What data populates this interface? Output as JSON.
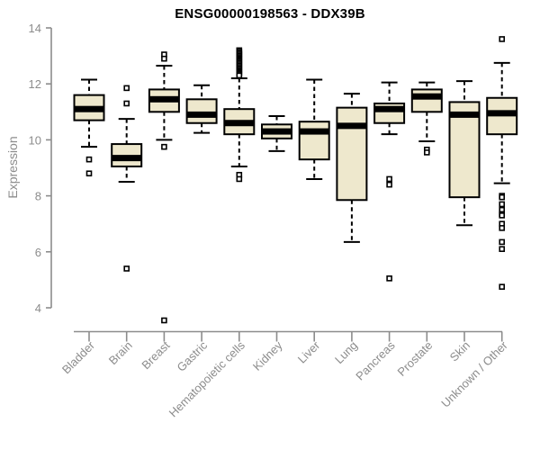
{
  "chart_data": {
    "type": "boxplot",
    "title": "ENSG00000198563 - DDX39B",
    "ylabel": "Expression",
    "xlabel": "",
    "ylim": [
      3.4,
      14
    ],
    "yticks": [
      4,
      6,
      8,
      10,
      12,
      14
    ],
    "grid": false,
    "legend": "none",
    "categories": [
      "Bladder",
      "Brain",
      "Breast",
      "Gastric",
      "Hematopoietic cells",
      "Kidney",
      "Liver",
      "Lung",
      "Pancreas",
      "Prostate",
      "Skin",
      "Unknown / Other"
    ],
    "series": [
      {
        "name": "Bladder",
        "whisker_low": 9.75,
        "q1": 10.7,
        "median": 11.1,
        "q3": 11.6,
        "whisker_high": 12.15,
        "outliers": [
          9.3,
          8.8
        ]
      },
      {
        "name": "Brain",
        "whisker_low": 8.5,
        "q1": 9.05,
        "median": 9.35,
        "q3": 9.85,
        "whisker_high": 10.75,
        "outliers": [
          11.85,
          11.3,
          5.4
        ]
      },
      {
        "name": "Breast",
        "whisker_low": 10.0,
        "q1": 11.0,
        "median": 11.45,
        "q3": 11.8,
        "whisker_high": 12.65,
        "outliers": [
          13.05,
          12.9,
          9.75,
          3.55
        ]
      },
      {
        "name": "Gastric",
        "whisker_low": 10.25,
        "q1": 10.6,
        "median": 10.9,
        "q3": 11.45,
        "whisker_high": 11.95,
        "outliers": []
      },
      {
        "name": "Hematopoietic cells",
        "whisker_low": 9.05,
        "q1": 10.2,
        "median": 10.6,
        "q3": 11.1,
        "whisker_high": 12.2,
        "outliers": [
          13.2,
          13.15,
          13.1,
          13.05,
          13.0,
          12.95,
          12.9,
          12.85,
          12.8,
          12.75,
          12.7,
          12.65,
          12.6,
          12.55,
          12.5,
          12.45,
          12.4,
          12.35,
          12.3,
          8.75,
          8.6
        ]
      },
      {
        "name": "Kidney",
        "whisker_low": 9.6,
        "q1": 10.05,
        "median": 10.3,
        "q3": 10.55,
        "whisker_high": 10.85,
        "outliers": []
      },
      {
        "name": "Liver",
        "whisker_low": 8.6,
        "q1": 9.3,
        "median": 10.3,
        "q3": 10.65,
        "whisker_high": 12.15,
        "outliers": []
      },
      {
        "name": "Lung",
        "whisker_low": 6.35,
        "q1": 7.85,
        "median": 10.5,
        "q3": 11.15,
        "whisker_high": 11.65,
        "outliers": []
      },
      {
        "name": "Pancreas",
        "whisker_low": 10.2,
        "q1": 10.6,
        "median": 11.1,
        "q3": 11.3,
        "whisker_high": 12.05,
        "outliers": [
          8.6,
          8.4,
          5.05
        ]
      },
      {
        "name": "Prostate",
        "whisker_low": 9.95,
        "q1": 11.0,
        "median": 11.55,
        "q3": 11.8,
        "whisker_high": 12.05,
        "outliers": [
          9.65,
          9.55
        ]
      },
      {
        "name": "Skin",
        "whisker_low": 6.95,
        "q1": 7.95,
        "median": 10.9,
        "q3": 11.35,
        "whisker_high": 12.1,
        "outliers": []
      },
      {
        "name": "Unknown / Other",
        "whisker_low": 8.45,
        "q1": 10.2,
        "median": 10.95,
        "q3": 11.5,
        "whisker_high": 12.75,
        "outliers": [
          13.6,
          8.0,
          7.95,
          7.7,
          7.5,
          7.35,
          7.3,
          7.0,
          6.85,
          6.35,
          6.1,
          4.75
        ]
      }
    ],
    "colors": {
      "box_fill": "#EEE8CD",
      "box_stroke": "#000000",
      "median_color": "#000000",
      "whisker_color": "#000000",
      "outlier_color": "#000000",
      "axis_color": "#8c8c8c",
      "tick_label_color": "#8c8c8c",
      "title_color": "#000000",
      "background": "#ffffff"
    }
  }
}
